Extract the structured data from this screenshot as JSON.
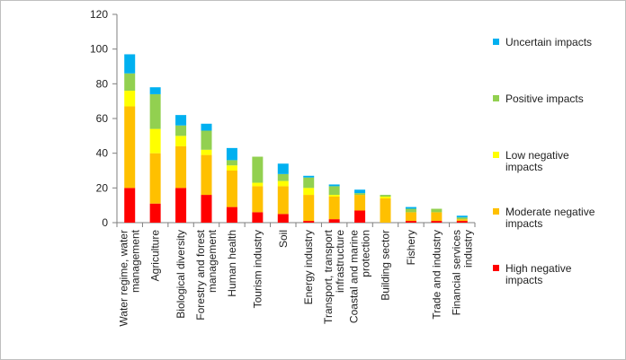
{
  "chart_data": {
    "type": "bar",
    "stacked": true,
    "title": "",
    "xlabel": "",
    "ylabel": "",
    "ylim": [
      0,
      120
    ],
    "yticks": [
      0,
      20,
      40,
      60,
      80,
      100,
      120
    ],
    "grid": false,
    "legend_position": "right",
    "categories": [
      [
        "Water regime, water",
        "management"
      ],
      [
        "Agriculture"
      ],
      [
        "Biological diversity"
      ],
      [
        "Forestry and forest",
        "management"
      ],
      [
        "Human health"
      ],
      [
        "Tourism industry"
      ],
      [
        "Soil"
      ],
      [
        "Energy industry"
      ],
      [
        "Transport, transport",
        "infrastructure"
      ],
      [
        "Coastal and marine",
        "protection"
      ],
      [
        "Building sector"
      ],
      [
        "Fishery"
      ],
      [
        "Trade and industry"
      ],
      [
        "Financial services",
        "industry"
      ]
    ],
    "series": [
      {
        "name": "High negative impacts",
        "color": "#ff0000",
        "values": [
          20,
          11,
          20,
          16,
          9,
          6,
          5,
          1,
          2,
          7,
          0,
          1,
          1,
          1
        ]
      },
      {
        "name": "Moderate negative impacts",
        "color": "#ffc000",
        "values": [
          47,
          29,
          24,
          23,
          21,
          15,
          16,
          15,
          13,
          9,
          14,
          5,
          5,
          1
        ]
      },
      {
        "name": "Low negative impacts",
        "color": "#ffff00",
        "values": [
          9,
          14,
          6,
          3,
          3,
          2,
          3,
          4,
          1,
          0,
          1,
          0,
          0,
          0
        ]
      },
      {
        "name": "Positive impacts",
        "color": "#92d050",
        "values": [
          10,
          20,
          6,
          11,
          3,
          15,
          4,
          6,
          5,
          1,
          1,
          2,
          2,
          1
        ]
      },
      {
        "name": "Uncertain impacts",
        "color": "#00b0f0",
        "values": [
          11,
          4,
          6,
          4,
          7,
          0,
          6,
          1,
          1,
          2,
          0,
          1,
          0,
          1
        ]
      }
    ],
    "legend": [
      {
        "series_index": 4,
        "lines": [
          "Uncertain impacts"
        ]
      },
      {
        "series_index": 3,
        "lines": [
          "Positive impacts"
        ]
      },
      {
        "series_index": 2,
        "lines": [
          "Low negative",
          "impacts"
        ]
      },
      {
        "series_index": 1,
        "lines": [
          "Moderate negative",
          "impacts"
        ]
      },
      {
        "series_index": 0,
        "lines": [
          "High negative",
          "impacts"
        ]
      }
    ]
  }
}
